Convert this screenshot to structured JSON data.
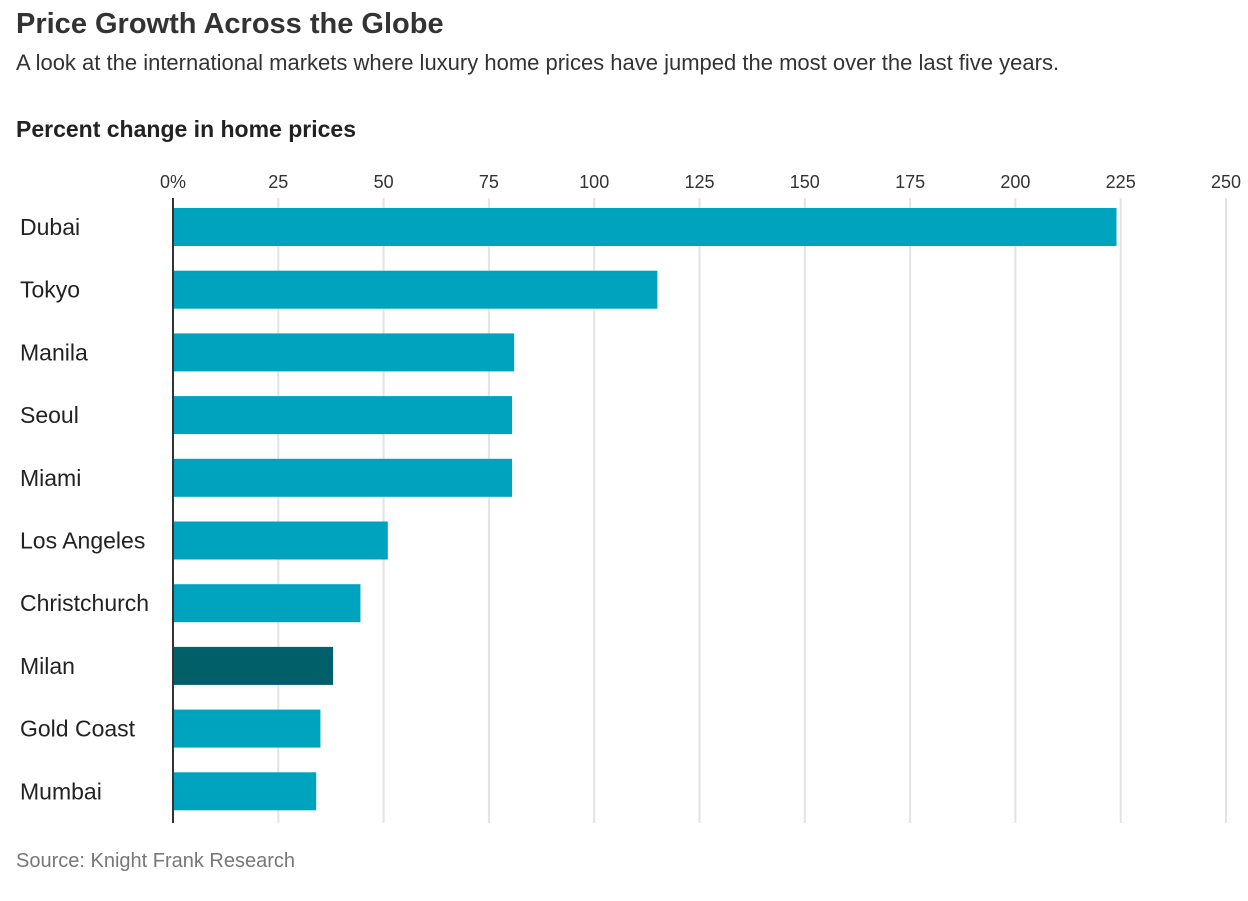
{
  "chart_data": {
    "type": "bar",
    "orientation": "horizontal",
    "title": "Price Growth Across the Globe",
    "subtitle": "A look at the international markets where luxury home prices have jumped the most over the last five years.",
    "xlabel": "Percent change in home prices",
    "ylabel": "",
    "categories": [
      "Dubai",
      "Tokyo",
      "Manila",
      "Seoul",
      "Miami",
      "Los Angeles",
      "Christchurch",
      "Milan",
      "Gold Coast",
      "Mumbai"
    ],
    "values": [
      224,
      115,
      81,
      80.5,
      80.5,
      51,
      44.5,
      38,
      35,
      34
    ],
    "highlight": [
      "Milan"
    ],
    "xlim": [
      0,
      250
    ],
    "ticks": [
      0,
      25,
      50,
      75,
      100,
      125,
      150,
      175,
      200,
      225,
      250
    ],
    "tick_labels": [
      "0%",
      "25",
      "50",
      "75",
      "100",
      "125",
      "150",
      "175",
      "200",
      "225",
      "250"
    ],
    "grid": true,
    "source": "Source: Knight Frank Research",
    "colors": {
      "bar": "#00a3bd",
      "highlight": "#005f69",
      "grid": "#e3e3e3",
      "axis": "#333333"
    }
  }
}
